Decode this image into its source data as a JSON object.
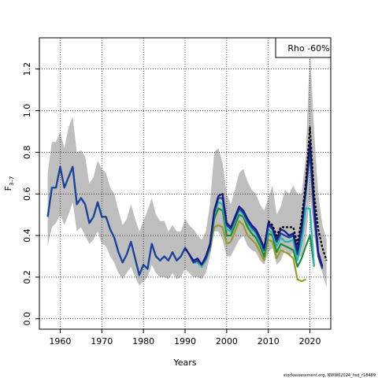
{
  "chart_data": {
    "type": "line",
    "xlabel": "Years",
    "ylabel_main": "F",
    "ylabel_sub": "3–7",
    "xlim": [
      1955,
      2025
    ],
    "ylim": [
      -0.05,
      1.35
    ],
    "xticks": [
      1960,
      1970,
      1980,
      1990,
      2000,
      2010,
      2020
    ],
    "yticks": [
      0.0,
      0.2,
      0.4,
      0.6,
      0.8,
      1.0,
      1.2
    ],
    "ytick_labels": [
      "0.0",
      "0.2",
      "0.4",
      "0.6",
      "0.8",
      "1.0",
      "1.2"
    ],
    "grid": true,
    "legend_label": "Rho -60%",
    "legend_position": "top-right",
    "credit": "stockassessment.org, NWW02024_hsd_r18489",
    "colors": {
      "band": "#bebebe",
      "main": "#000000",
      "peel_olive": "#9a9a28",
      "peel_green": "#1e8a3a",
      "peel_teal": "#2ab5b0",
      "peel_blue": "#1f3fa0",
      "peel_navy": "#1a1a80",
      "peel_light": "#8fd0d0",
      "grid": "#000000"
    },
    "confidence_band": {
      "x": [
        1957,
        1958,
        1959,
        1960,
        1961,
        1962,
        1963,
        1964,
        1965,
        1966,
        1967,
        1968,
        1969,
        1970,
        1971,
        1972,
        1973,
        1974,
        1975,
        1976,
        1977,
        1978,
        1979,
        1980,
        1981,
        1982,
        1983,
        1984,
        1985,
        1986,
        1987,
        1988,
        1989,
        1990,
        1991,
        1992,
        1993,
        1994,
        1995,
        1996,
        1997,
        1998,
        1999,
        2000,
        2001,
        2002,
        2003,
        2004,
        2005,
        2006,
        2007,
        2008,
        2009,
        2010,
        2011,
        2012,
        2013,
        2014,
        2015,
        2016,
        2017,
        2018,
        2019,
        2020,
        2021,
        2022,
        2023,
        2024
      ],
      "upper": [
        0.7,
        0.85,
        0.85,
        0.9,
        0.82,
        0.92,
        0.97,
        0.8,
        0.81,
        0.78,
        0.65,
        0.68,
        0.76,
        0.72,
        0.7,
        0.63,
        0.6,
        0.52,
        0.45,
        0.48,
        0.55,
        0.48,
        0.42,
        0.47,
        0.52,
        0.58,
        0.5,
        0.47,
        0.47,
        0.42,
        0.45,
        0.42,
        0.42,
        0.48,
        0.45,
        0.43,
        0.4,
        0.38,
        0.42,
        0.55,
        0.8,
        0.82,
        0.75,
        0.6,
        0.55,
        0.62,
        0.7,
        0.72,
        0.66,
        0.62,
        0.6,
        0.55,
        0.52,
        0.58,
        0.64,
        0.5,
        0.54,
        0.62,
        0.6,
        0.64,
        0.6,
        0.6,
        0.78,
        1.3,
        0.9,
        0.6,
        0.45,
        0.38
      ],
      "lower": [
        0.35,
        0.44,
        0.46,
        0.5,
        0.45,
        0.5,
        0.56,
        0.42,
        0.44,
        0.4,
        0.36,
        0.38,
        0.42,
        0.36,
        0.35,
        0.3,
        0.27,
        0.22,
        0.19,
        0.22,
        0.25,
        0.2,
        0.16,
        0.18,
        0.2,
        0.26,
        0.22,
        0.2,
        0.2,
        0.19,
        0.22,
        0.19,
        0.2,
        0.24,
        0.22,
        0.2,
        0.2,
        0.19,
        0.22,
        0.3,
        0.42,
        0.42,
        0.38,
        0.3,
        0.3,
        0.34,
        0.38,
        0.4,
        0.35,
        0.33,
        0.32,
        0.28,
        0.26,
        0.32,
        0.34,
        0.26,
        0.28,
        0.33,
        0.3,
        0.32,
        0.3,
        0.3,
        0.38,
        0.6,
        0.4,
        0.28,
        0.22,
        0.15
      ]
    },
    "series": [
      {
        "key": "peel_olive",
        "x": [
          1957,
          1958,
          1959,
          1960,
          1961,
          1962,
          1963,
          1964,
          1965,
          1966,
          1967,
          1968,
          1969,
          1970,
          1971,
          1972,
          1973,
          1974,
          1975,
          1976,
          1977,
          1978,
          1979,
          1980,
          1981,
          1982,
          1983,
          1984,
          1985,
          1986,
          1987,
          1988,
          1989,
          1990,
          1991,
          1992,
          1993,
          1994,
          1995,
          1996,
          1997,
          1998,
          1999,
          2000,
          2001,
          2002,
          2003,
          2004,
          2005,
          2006,
          2007,
          2008,
          2009,
          2010,
          2011,
          2012,
          2013,
          2014,
          2015,
          2016,
          2017,
          2018,
          2019
        ],
        "y": [
          0.49,
          0.63,
          0.63,
          0.73,
          0.63,
          0.68,
          0.73,
          0.55,
          0.58,
          0.55,
          0.46,
          0.49,
          0.56,
          0.49,
          0.49,
          0.43,
          0.39,
          0.32,
          0.27,
          0.31,
          0.37,
          0.29,
          0.21,
          0.26,
          0.24,
          0.36,
          0.3,
          0.28,
          0.3,
          0.28,
          0.32,
          0.28,
          0.3,
          0.34,
          0.31,
          0.27,
          0.27,
          0.25,
          0.28,
          0.33,
          0.44,
          0.45,
          0.44,
          0.36,
          0.37,
          0.42,
          0.47,
          0.45,
          0.4,
          0.38,
          0.36,
          0.32,
          0.28,
          0.38,
          0.37,
          0.29,
          0.33,
          0.32,
          0.31,
          0.29,
          0.19,
          0.18,
          0.19
        ]
      },
      {
        "key": "peel_green",
        "x": [
          1957,
          1958,
          1959,
          1960,
          1961,
          1962,
          1963,
          1964,
          1965,
          1966,
          1967,
          1968,
          1969,
          1970,
          1971,
          1972,
          1973,
          1974,
          1975,
          1976,
          1977,
          1978,
          1979,
          1980,
          1981,
          1982,
          1983,
          1984,
          1985,
          1986,
          1987,
          1988,
          1989,
          1990,
          1991,
          1992,
          1993,
          1994,
          1995,
          1996,
          1997,
          1998,
          1999,
          2000,
          2001,
          2002,
          2003,
          2004,
          2005,
          2006,
          2007,
          2008,
          2009,
          2010,
          2011,
          2012,
          2013,
          2014,
          2015,
          2016,
          2017,
          2018,
          2019,
          2020,
          2021
        ],
        "y": [
          0.49,
          0.63,
          0.63,
          0.73,
          0.63,
          0.68,
          0.73,
          0.55,
          0.58,
          0.55,
          0.46,
          0.49,
          0.56,
          0.49,
          0.49,
          0.43,
          0.39,
          0.32,
          0.27,
          0.31,
          0.37,
          0.29,
          0.21,
          0.26,
          0.24,
          0.36,
          0.3,
          0.28,
          0.3,
          0.28,
          0.32,
          0.28,
          0.3,
          0.34,
          0.31,
          0.27,
          0.27,
          0.25,
          0.28,
          0.34,
          0.48,
          0.53,
          0.52,
          0.4,
          0.4,
          0.45,
          0.5,
          0.49,
          0.44,
          0.41,
          0.39,
          0.35,
          0.3,
          0.41,
          0.4,
          0.32,
          0.36,
          0.35,
          0.34,
          0.33,
          0.25,
          0.29,
          0.35,
          0.4,
          0.25
        ]
      },
      {
        "key": "peel_teal",
        "x": [
          1957,
          1958,
          1959,
          1960,
          1961,
          1962,
          1963,
          1964,
          1965,
          1966,
          1967,
          1968,
          1969,
          1970,
          1971,
          1972,
          1973,
          1974,
          1975,
          1976,
          1977,
          1978,
          1979,
          1980,
          1981,
          1982,
          1983,
          1984,
          1985,
          1986,
          1987,
          1988,
          1989,
          1990,
          1991,
          1992,
          1993,
          1994,
          1995,
          1996,
          1997,
          1998,
          1999,
          2000,
          2001,
          2002,
          2003,
          2004,
          2005,
          2006,
          2007,
          2008,
          2009,
          2010,
          2011,
          2012,
          2013,
          2014,
          2015,
          2016,
          2017,
          2018,
          2019,
          2020,
          2021
        ],
        "y": [
          0.49,
          0.63,
          0.63,
          0.73,
          0.63,
          0.68,
          0.73,
          0.55,
          0.58,
          0.55,
          0.46,
          0.49,
          0.56,
          0.49,
          0.49,
          0.43,
          0.39,
          0.32,
          0.27,
          0.31,
          0.37,
          0.29,
          0.21,
          0.26,
          0.24,
          0.36,
          0.3,
          0.28,
          0.3,
          0.28,
          0.32,
          0.28,
          0.3,
          0.34,
          0.31,
          0.27,
          0.27,
          0.25,
          0.28,
          0.34,
          0.5,
          0.56,
          0.55,
          0.43,
          0.42,
          0.47,
          0.52,
          0.5,
          0.46,
          0.43,
          0.41,
          0.37,
          0.32,
          0.43,
          0.41,
          0.35,
          0.39,
          0.37,
          0.37,
          0.38,
          0.28,
          0.37,
          0.53,
          0.53,
          0.25
        ]
      },
      {
        "key": "peel_light",
        "x": [
          2015,
          2016,
          2017,
          2018,
          2019,
          2020,
          2021,
          2022
        ],
        "y": [
          0.38,
          0.39,
          0.32,
          0.44,
          0.6,
          0.76,
          0.55,
          0.3
        ]
      },
      {
        "key": "peel_blue",
        "x": [
          1957,
          1958,
          1959,
          1960,
          1961,
          1962,
          1963,
          1964,
          1965,
          1966,
          1967,
          1968,
          1969,
          1970,
          1971,
          1972,
          1973,
          1974,
          1975,
          1976,
          1977,
          1978,
          1979,
          1980,
          1981,
          1982,
          1983,
          1984,
          1985,
          1986,
          1987,
          1988,
          1989,
          1990,
          1991,
          1992,
          1993,
          1994,
          1995,
          1996,
          1997,
          1998,
          1999,
          2000,
          2001,
          2002,
          2003,
          2004,
          2005,
          2006,
          2007,
          2008,
          2009,
          2010,
          2011,
          2012,
          2013,
          2014,
          2015,
          2016,
          2017,
          2018,
          2019,
          2020,
          2021,
          2022,
          2023
        ],
        "y": [
          0.49,
          0.63,
          0.63,
          0.73,
          0.63,
          0.68,
          0.73,
          0.55,
          0.58,
          0.55,
          0.46,
          0.49,
          0.56,
          0.49,
          0.49,
          0.43,
          0.39,
          0.32,
          0.27,
          0.31,
          0.37,
          0.29,
          0.21,
          0.26,
          0.24,
          0.36,
          0.3,
          0.28,
          0.3,
          0.28,
          0.32,
          0.28,
          0.3,
          0.34,
          0.31,
          0.27,
          0.28,
          0.26,
          0.29,
          0.35,
          0.51,
          0.58,
          0.58,
          0.45,
          0.43,
          0.48,
          0.53,
          0.51,
          0.47,
          0.44,
          0.42,
          0.38,
          0.33,
          0.45,
          0.43,
          0.37,
          0.41,
          0.4,
          0.39,
          0.4,
          0.31,
          0.42,
          0.61,
          0.8,
          0.5,
          0.3,
          0.24
        ]
      },
      {
        "key": "peel_navy",
        "x": [
          1990,
          1991,
          1992,
          1993,
          1994,
          1995,
          1996,
          1997,
          1998,
          1999,
          2000,
          2001,
          2002,
          2003,
          2004,
          2005,
          2006,
          2007,
          2008,
          2009,
          2010,
          2011,
          2012,
          2013,
          2014,
          2015,
          2016,
          2017,
          2018,
          2019,
          2020,
          2021,
          2022,
          2023
        ],
        "y": [
          0.34,
          0.31,
          0.28,
          0.29,
          0.26,
          0.3,
          0.36,
          0.52,
          0.59,
          0.6,
          0.46,
          0.44,
          0.49,
          0.54,
          0.52,
          0.48,
          0.45,
          0.43,
          0.39,
          0.34,
          0.46,
          0.44,
          0.38,
          0.43,
          0.42,
          0.4,
          0.41,
          0.33,
          0.45,
          0.63,
          0.85,
          0.55,
          0.32,
          0.25
        ]
      },
      {
        "key": "main",
        "dashed": true,
        "x": [
          2010,
          2011,
          2012,
          2013,
          2014,
          2015,
          2016,
          2017,
          2018,
          2019,
          2020,
          2021,
          2022,
          2023,
          2024
        ],
        "y": [
          0.47,
          0.45,
          0.4,
          0.44,
          0.44,
          0.44,
          0.44,
          0.36,
          0.48,
          0.66,
          0.92,
          0.6,
          0.43,
          0.34,
          0.28
        ]
      }
    ]
  }
}
